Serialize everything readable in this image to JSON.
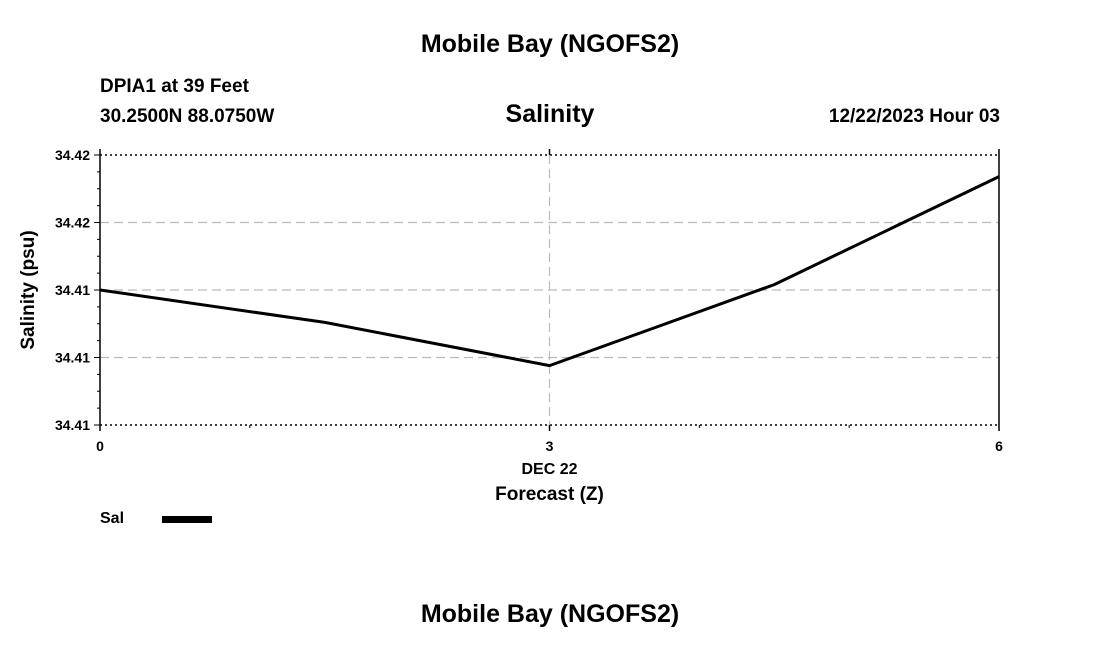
{
  "header": {
    "title": "Mobile Bay (NGOFS2)",
    "station": "DPIA1 at 39 Feet",
    "coords": "30.2500N  88.0750W",
    "subtitle": "Salinity",
    "datetime": "12/22/2023 Hour 03"
  },
  "footer": {
    "title": "Mobile Bay (NGOFS2)"
  },
  "chart_data": {
    "type": "line",
    "title": "Salinity",
    "xlabel": "Forecast (Z)",
    "ylabel": "Salinity (psu)",
    "x_date_label": "DEC 22",
    "xlim": [
      0,
      6
    ],
    "ylim": [
      34.41,
      34.42
    ],
    "x_ticks": [
      0,
      3,
      6
    ],
    "y_ticks": [
      34.41,
      34.4125,
      34.415,
      34.4175,
      34.42
    ],
    "y_tick_labels": [
      "34.41",
      "34.41",
      "34.41",
      "34.42",
      "34.42"
    ],
    "grid": true,
    "legend_position": "bottom-left",
    "series": [
      {
        "name": "Sal",
        "color": "#000000",
        "x": [
          0,
          1.5,
          3,
          4.5,
          6
        ],
        "y": [
          34.415,
          34.4138,
          34.4122,
          34.4152,
          34.4192
        ]
      }
    ]
  }
}
